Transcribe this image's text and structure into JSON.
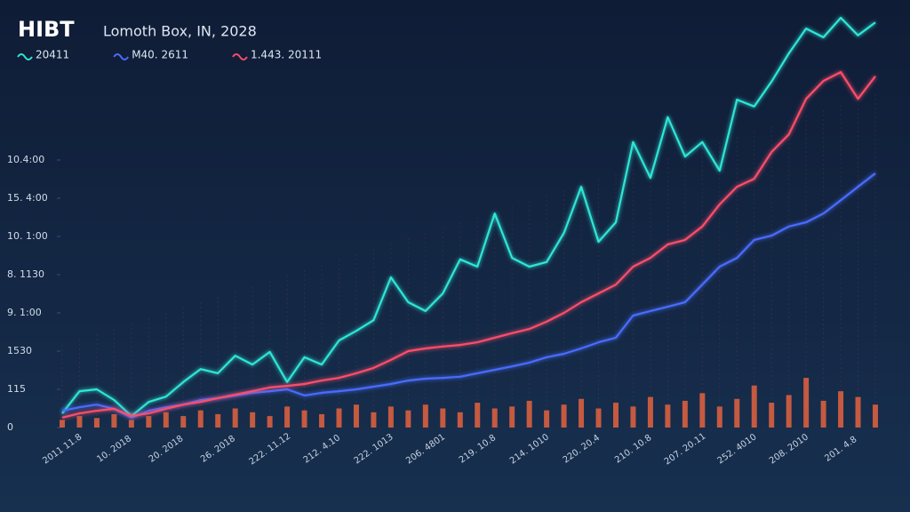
{
  "chart_data": {
    "type": "line",
    "title": "HIBT",
    "subtitle": "Lomoth Box, IN, 2028",
    "categories": [
      "2011 11.8",
      null,
      null,
      "10. 2018",
      null,
      null,
      "20. 2018",
      null,
      null,
      "26. 2018",
      null,
      null,
      "222. 11.12",
      null,
      null,
      "212. 4.10",
      null,
      null,
      "222. 1013",
      null,
      null,
      "206. 4801",
      null,
      null,
      "219. 10.8",
      null,
      null,
      "214. 1010",
      null,
      null,
      "220. 20.4",
      null,
      null,
      "210. 10.8",
      null,
      null,
      "207. 20.11",
      null,
      null,
      "252. 4010",
      null,
      null,
      "208. 2010",
      null,
      null,
      "201. 4.8",
      null,
      null
    ],
    "series": [
      {
        "name": "20411",
        "color": "#2ee6d6",
        "values": [
          0.37,
          0.95,
          1.0,
          0.72,
          0.3,
          0.67,
          0.81,
          1.19,
          1.53,
          1.42,
          1.88,
          1.65,
          1.98,
          1.19,
          1.84,
          1.65,
          2.28,
          2.53,
          2.81,
          3.93,
          3.28,
          3.05,
          3.51,
          4.4,
          4.21,
          5.6,
          4.44,
          4.21,
          4.33,
          5.09,
          6.3,
          4.86,
          5.37,
          7.47,
          6.53,
          8.12,
          7.09,
          7.47,
          6.72,
          8.58,
          8.4,
          9.05,
          9.79,
          10.44,
          10.21,
          10.72,
          10.26,
          10.6
        ]
      },
      {
        "name": "M40. 2611",
        "color": "#4a6cff",
        "values": [
          0.44,
          0.53,
          0.6,
          0.49,
          0.26,
          0.44,
          0.53,
          0.6,
          0.72,
          0.77,
          0.84,
          0.91,
          0.95,
          1.0,
          0.84,
          0.91,
          0.95,
          1.0,
          1.07,
          1.14,
          1.23,
          1.28,
          1.3,
          1.33,
          1.42,
          1.51,
          1.6,
          1.7,
          1.84,
          1.93,
          2.07,
          2.23,
          2.35,
          2.93,
          3.05,
          3.16,
          3.28,
          3.74,
          4.21,
          4.44,
          4.91,
          5.02,
          5.26,
          5.37,
          5.6,
          5.95,
          6.3,
          6.65
        ]
      },
      {
        "name": "1.443. 20111",
        "color": "#ff4d6a",
        "values": [
          0.26,
          0.37,
          0.44,
          0.49,
          0.3,
          0.37,
          0.49,
          0.6,
          0.67,
          0.77,
          0.86,
          0.95,
          1.05,
          1.09,
          1.14,
          1.23,
          1.3,
          1.42,
          1.56,
          1.77,
          2.0,
          2.07,
          2.12,
          2.16,
          2.23,
          2.35,
          2.47,
          2.58,
          2.77,
          3.0,
          3.28,
          3.51,
          3.74,
          4.21,
          4.44,
          4.79,
          4.91,
          5.26,
          5.84,
          6.3,
          6.51,
          7.21,
          7.67,
          8.6,
          9.07,
          9.3,
          8.6,
          9.19
        ]
      },
      {
        "type": "bar",
        "color": "#ff6a3d",
        "values": [
          0.2,
          0.3,
          0.25,
          0.35,
          0.2,
          0.3,
          0.4,
          0.3,
          0.45,
          0.35,
          0.5,
          0.4,
          0.3,
          0.55,
          0.45,
          0.35,
          0.5,
          0.6,
          0.4,
          0.55,
          0.45,
          0.6,
          0.5,
          0.4,
          0.65,
          0.5,
          0.55,
          0.7,
          0.45,
          0.6,
          0.75,
          0.5,
          0.65,
          0.55,
          0.8,
          0.6,
          0.7,
          0.9,
          0.55,
          0.75,
          1.1,
          0.65,
          0.85,
          1.3,
          0.7,
          0.95,
          0.8,
          0.6
        ]
      }
    ],
    "ylim": [
      0,
      11
    ],
    "yticks": [
      {
        "value": 0,
        "label": "0"
      },
      {
        "value": 1,
        "label": "115"
      },
      {
        "value": 2,
        "label": "1530"
      },
      {
        "value": 3,
        "label": "9. 1:00"
      },
      {
        "value": 4,
        "label": "8. 1130"
      },
      {
        "value": 5,
        "label": "10. 1:00"
      },
      {
        "value": 6,
        "label": "15. 4:00"
      },
      {
        "value": 7,
        "label": "10.4:00"
      }
    ]
  }
}
